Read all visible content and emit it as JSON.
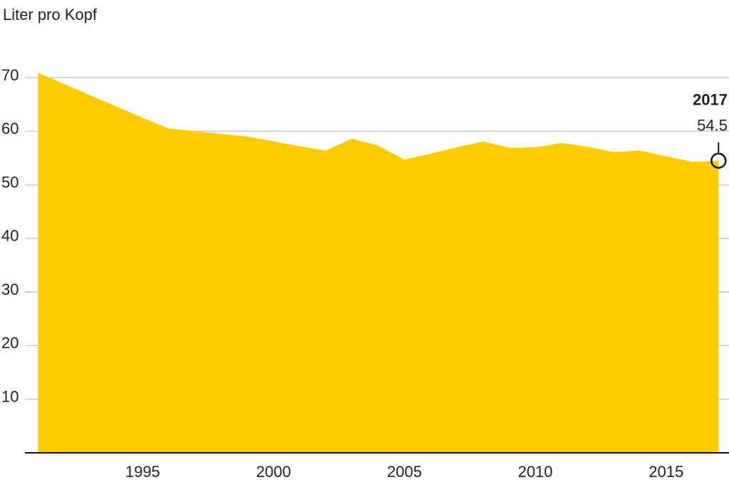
{
  "chart_data": {
    "type": "area",
    "title": "Liter pro Kopf",
    "x": [
      1991,
      1992,
      1993,
      1994,
      1995,
      1996,
      1997,
      1998,
      1999,
      2000,
      2001,
      2002,
      2003,
      2004,
      2005,
      2006,
      2007,
      2008,
      2009,
      2010,
      2011,
      2012,
      2013,
      2014,
      2015,
      2016,
      2017
    ],
    "values": [
      70.9,
      68.8,
      66.7,
      64.6,
      62.5,
      60.5,
      60,
      59.5,
      59,
      58.1,
      57.2,
      56.4,
      58.6,
      57.3,
      54.7,
      55.8,
      57,
      58.1,
      56.9,
      57,
      57.8,
      57.1,
      56.1,
      56.4,
      55.3,
      54.3,
      54.5
    ],
    "color": "#fecb00",
    "xlim": [
      1990.5,
      2017.4
    ],
    "xticks": [
      1995,
      2000,
      2005,
      2010,
      2015
    ],
    "ylim": [
      0,
      70
    ],
    "yticks": [
      10,
      20,
      30,
      40,
      50,
      60,
      70
    ],
    "grid": true
  }
}
